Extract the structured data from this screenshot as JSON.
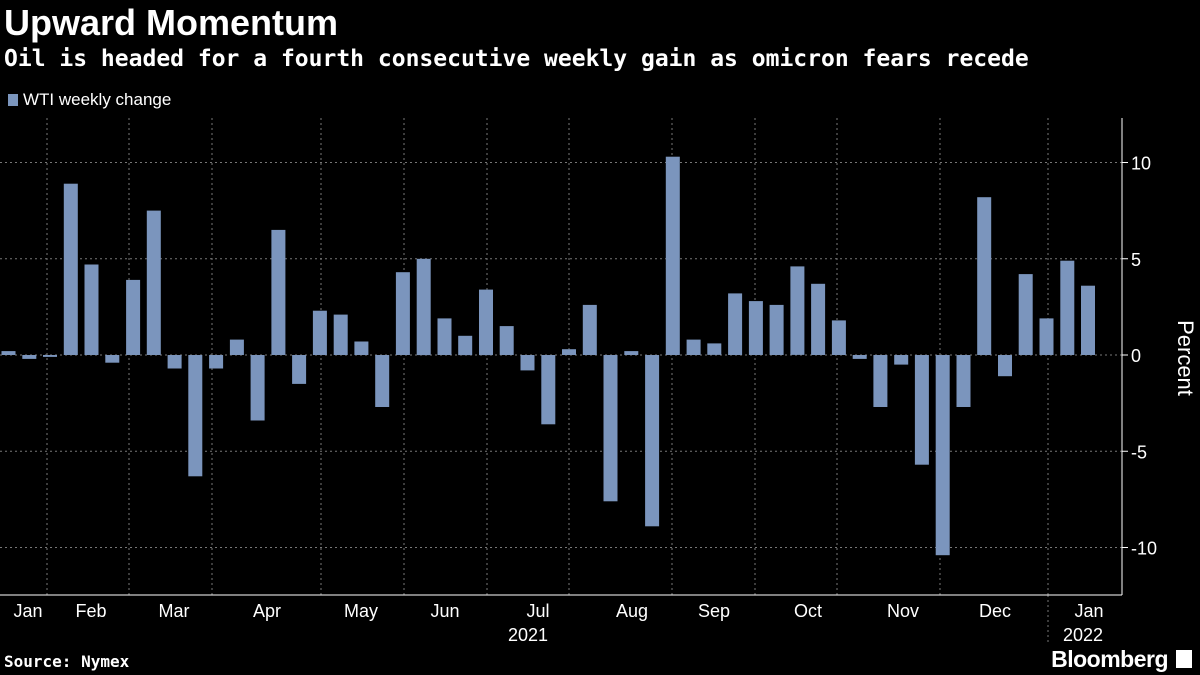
{
  "title": "Upward Momentum",
  "subtitle": "Oil is headed for a fourth consecutive weekly gain as omicron fears recede",
  "source": "Source: Nymex",
  "brand": "Bloomberg",
  "colors": {
    "bar": "#7b95bd",
    "grid": "#777777",
    "axis": "#ffffff",
    "background": "#000000"
  },
  "chart_data": {
    "type": "bar",
    "title": "Upward Momentum",
    "subtitle": "Oil is headed for a fourth consecutive weekly gain as omicron fears recede",
    "legend": [
      "WTI weekly change"
    ],
    "legend_position": "top-left",
    "ylabel": "Percent",
    "xlabel": "",
    "ylim": [
      -12.5,
      12.5
    ],
    "yticks": [
      10,
      5,
      0,
      -5,
      -10
    ],
    "ytick_labels": [
      "10",
      "5",
      "0",
      "-5",
      "-10"
    ],
    "month_labels": [
      "Jan",
      "Feb",
      "Mar",
      "Apr",
      "May",
      "Jun",
      "Jul",
      "Aug",
      "Sep",
      "Oct",
      "Nov",
      "Dec",
      "Jan"
    ],
    "year_labels": [
      "2021",
      "2022"
    ],
    "grid": true,
    "series": [
      {
        "name": "WTI weekly change",
        "values": [
          0.2,
          -0.2,
          -0.1,
          8.9,
          4.7,
          -0.4,
          3.9,
          7.5,
          -0.7,
          -6.3,
          -0.7,
          0.8,
          -3.4,
          6.5,
          -1.5,
          2.3,
          2.1,
          0.7,
          -2.7,
          4.3,
          5.0,
          1.9,
          1.0,
          3.4,
          1.5,
          -0.8,
          -3.6,
          0.3,
          2.6,
          -7.6,
          0.2,
          -8.9,
          10.3,
          0.8,
          0.6,
          3.2,
          2.8,
          2.6,
          4.6,
          3.7,
          1.8,
          -0.2,
          -2.7,
          -0.5,
          -5.7,
          -10.4,
          -2.7,
          8.2,
          -1.1,
          4.2,
          1.9,
          4.9,
          3.6
        ]
      }
    ]
  }
}
